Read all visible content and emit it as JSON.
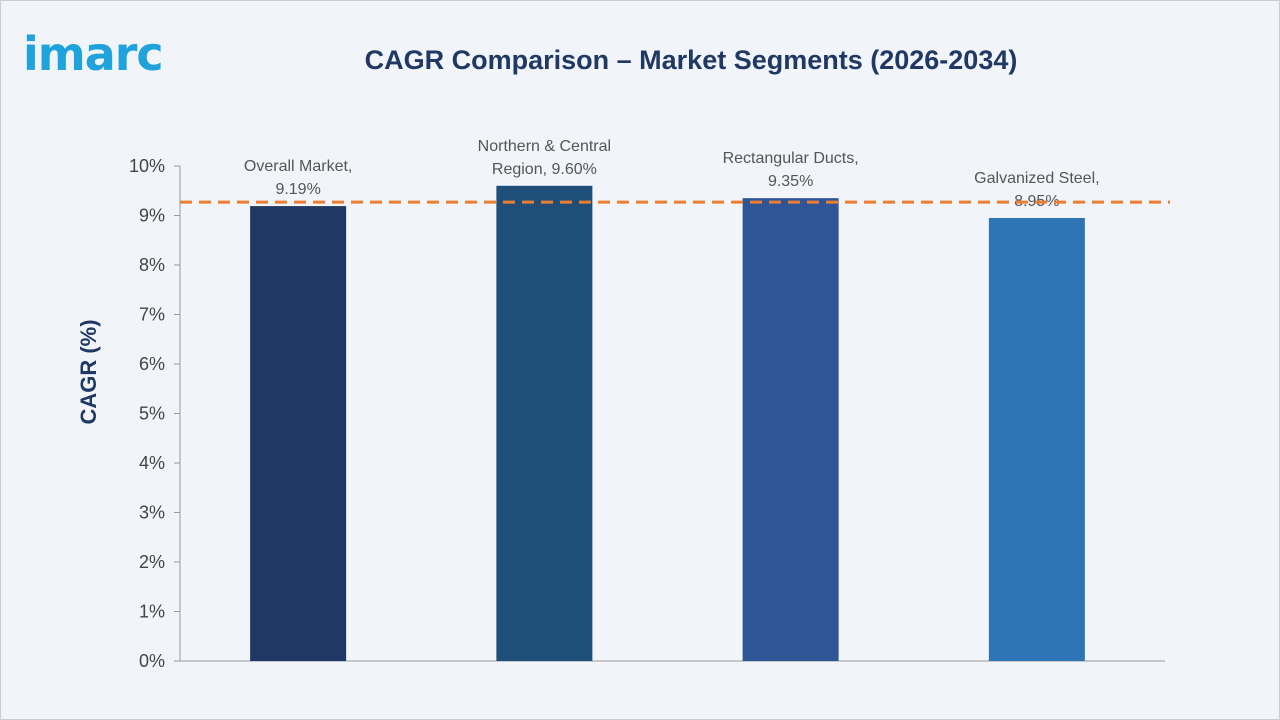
{
  "logo": {
    "text": "imarc",
    "color": "#1fa3dc"
  },
  "chart_data": {
    "type": "bar",
    "title": "CAGR Comparison – Market Segments (2026-2034)",
    "xlabel": "",
    "ylabel": "CAGR (%)",
    "ylim": [
      0,
      10
    ],
    "yticks": [
      "0%",
      "1%",
      "2%",
      "3%",
      "4%",
      "5%",
      "6%",
      "7%",
      "8%",
      "9%",
      "10%"
    ],
    "categories": [
      "Overall Market",
      "Northern & Central Region",
      "Rectangular Ducts",
      "Galvanized Steel"
    ],
    "values": [
      9.19,
      9.6,
      9.35,
      8.95
    ],
    "data_labels": [
      [
        "Overall Market,",
        "9.19%"
      ],
      [
        "Northern & Central",
        "Region, 9.60%"
      ],
      [
        "Rectangular Ducts,",
        "9.35%"
      ],
      [
        "Galvanized Steel,",
        "8.95%"
      ]
    ],
    "bar_colors": [
      "#1f3864",
      "#1f4e79",
      "#2f5597",
      "#2e75b6"
    ],
    "reference_line": {
      "value": 9.27,
      "style": "dashed",
      "color": "#ed7d31"
    },
    "grid": false,
    "legend": "none"
  }
}
